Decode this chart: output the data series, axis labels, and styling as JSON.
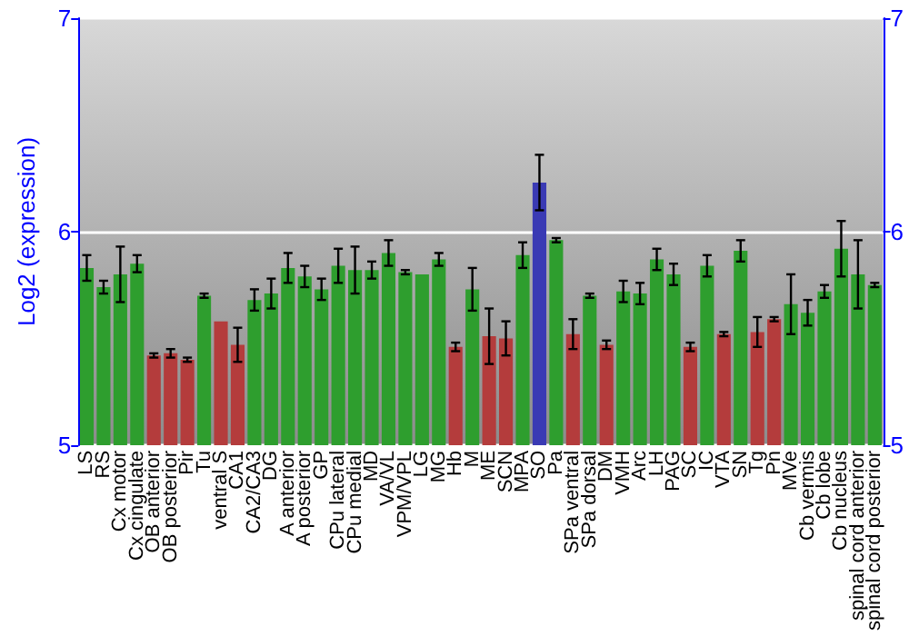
{
  "chart_data": {
    "type": "bar",
    "ylabel": "Log2 (expression)",
    "categories": [
      "LS",
      "RS",
      "Cx motor",
      "Cx cingulate",
      "OB anterior",
      "OB posterior",
      "Pir",
      "Tu",
      "ventral S",
      "CA1",
      "CA2/CA3",
      "DG",
      "A anterior",
      "A posterior",
      "GP",
      "CPu lateral",
      "CPu medial",
      "MD",
      "VA/VL",
      "VPM/VPL",
      "LG",
      "MG",
      "Hb",
      "M",
      "ME",
      "SCN",
      "MPA",
      "SO",
      "Pa",
      "SPa ventral",
      "SPa dorsal",
      "DM",
      "VMH",
      "Arc",
      "LH",
      "PAG",
      "SC",
      "IC",
      "VTA",
      "SN",
      "Tg",
      "Pn",
      "MVe",
      "Cb vermis",
      "Cb lobe",
      "Cb nucleus",
      "spinal cord anterior",
      "spinal cord posterior"
    ],
    "values": [
      5.83,
      5.74,
      5.8,
      5.85,
      5.42,
      5.43,
      5.4,
      5.7,
      5.58,
      5.47,
      5.68,
      5.71,
      5.83,
      5.79,
      5.73,
      5.84,
      5.82,
      5.82,
      5.9,
      5.81,
      5.8,
      5.87,
      5.46,
      5.73,
      5.51,
      5.5,
      5.89,
      6.23,
      5.96,
      5.52,
      5.7,
      5.47,
      5.72,
      5.71,
      5.87,
      5.8,
      5.46,
      5.84,
      5.52,
      5.91,
      5.53,
      5.59,
      5.66,
      5.62,
      5.72,
      5.92,
      5.8,
      5.75
    ],
    "errors": [
      0.06,
      0.03,
      0.13,
      0.04,
      0.01,
      0.02,
      0.01,
      0.01,
      null,
      0.08,
      0.05,
      0.07,
      0.07,
      0.05,
      0.05,
      0.08,
      0.11,
      0.04,
      0.06,
      0.01,
      null,
      0.03,
      0.02,
      0.1,
      0.13,
      0.08,
      0.06,
      0.13,
      0.01,
      0.07,
      0.01,
      0.02,
      0.05,
      0.05,
      0.05,
      0.05,
      0.02,
      0.05,
      0.01,
      0.05,
      0.07,
      0.01,
      0.14,
      0.06,
      0.03,
      0.13,
      0.16,
      0.01
    ],
    "colors": [
      "#2e9e2e",
      "#2e9e2e",
      "#2e9e2e",
      "#2e9e2e",
      "#b43c3c",
      "#b43c3c",
      "#b43c3c",
      "#2e9e2e",
      "#b43c3c",
      "#b43c3c",
      "#2e9e2e",
      "#2e9e2e",
      "#2e9e2e",
      "#2e9e2e",
      "#2e9e2e",
      "#2e9e2e",
      "#2e9e2e",
      "#2e9e2e",
      "#2e9e2e",
      "#2e9e2e",
      "#2e9e2e",
      "#2e9e2e",
      "#b43c3c",
      "#2e9e2e",
      "#b43c3c",
      "#b43c3c",
      "#2e9e2e",
      "#3a3ab4",
      "#2e9e2e",
      "#b43c3c",
      "#2e9e2e",
      "#b43c3c",
      "#2e9e2e",
      "#2e9e2e",
      "#2e9e2e",
      "#2e9e2e",
      "#b43c3c",
      "#2e9e2e",
      "#b43c3c",
      "#2e9e2e",
      "#b43c3c",
      "#b43c3c",
      "#2e9e2e",
      "#2e9e2e",
      "#2e9e2e",
      "#2e9e2e",
      "#2e9e2e",
      "#2e9e2e"
    ],
    "ylim": [
      5,
      7
    ],
    "yticks": [
      5,
      6,
      7
    ],
    "y2lim": [
      5,
      7
    ],
    "y2ticks": [
      5,
      6,
      7
    ],
    "grid": "y"
  }
}
